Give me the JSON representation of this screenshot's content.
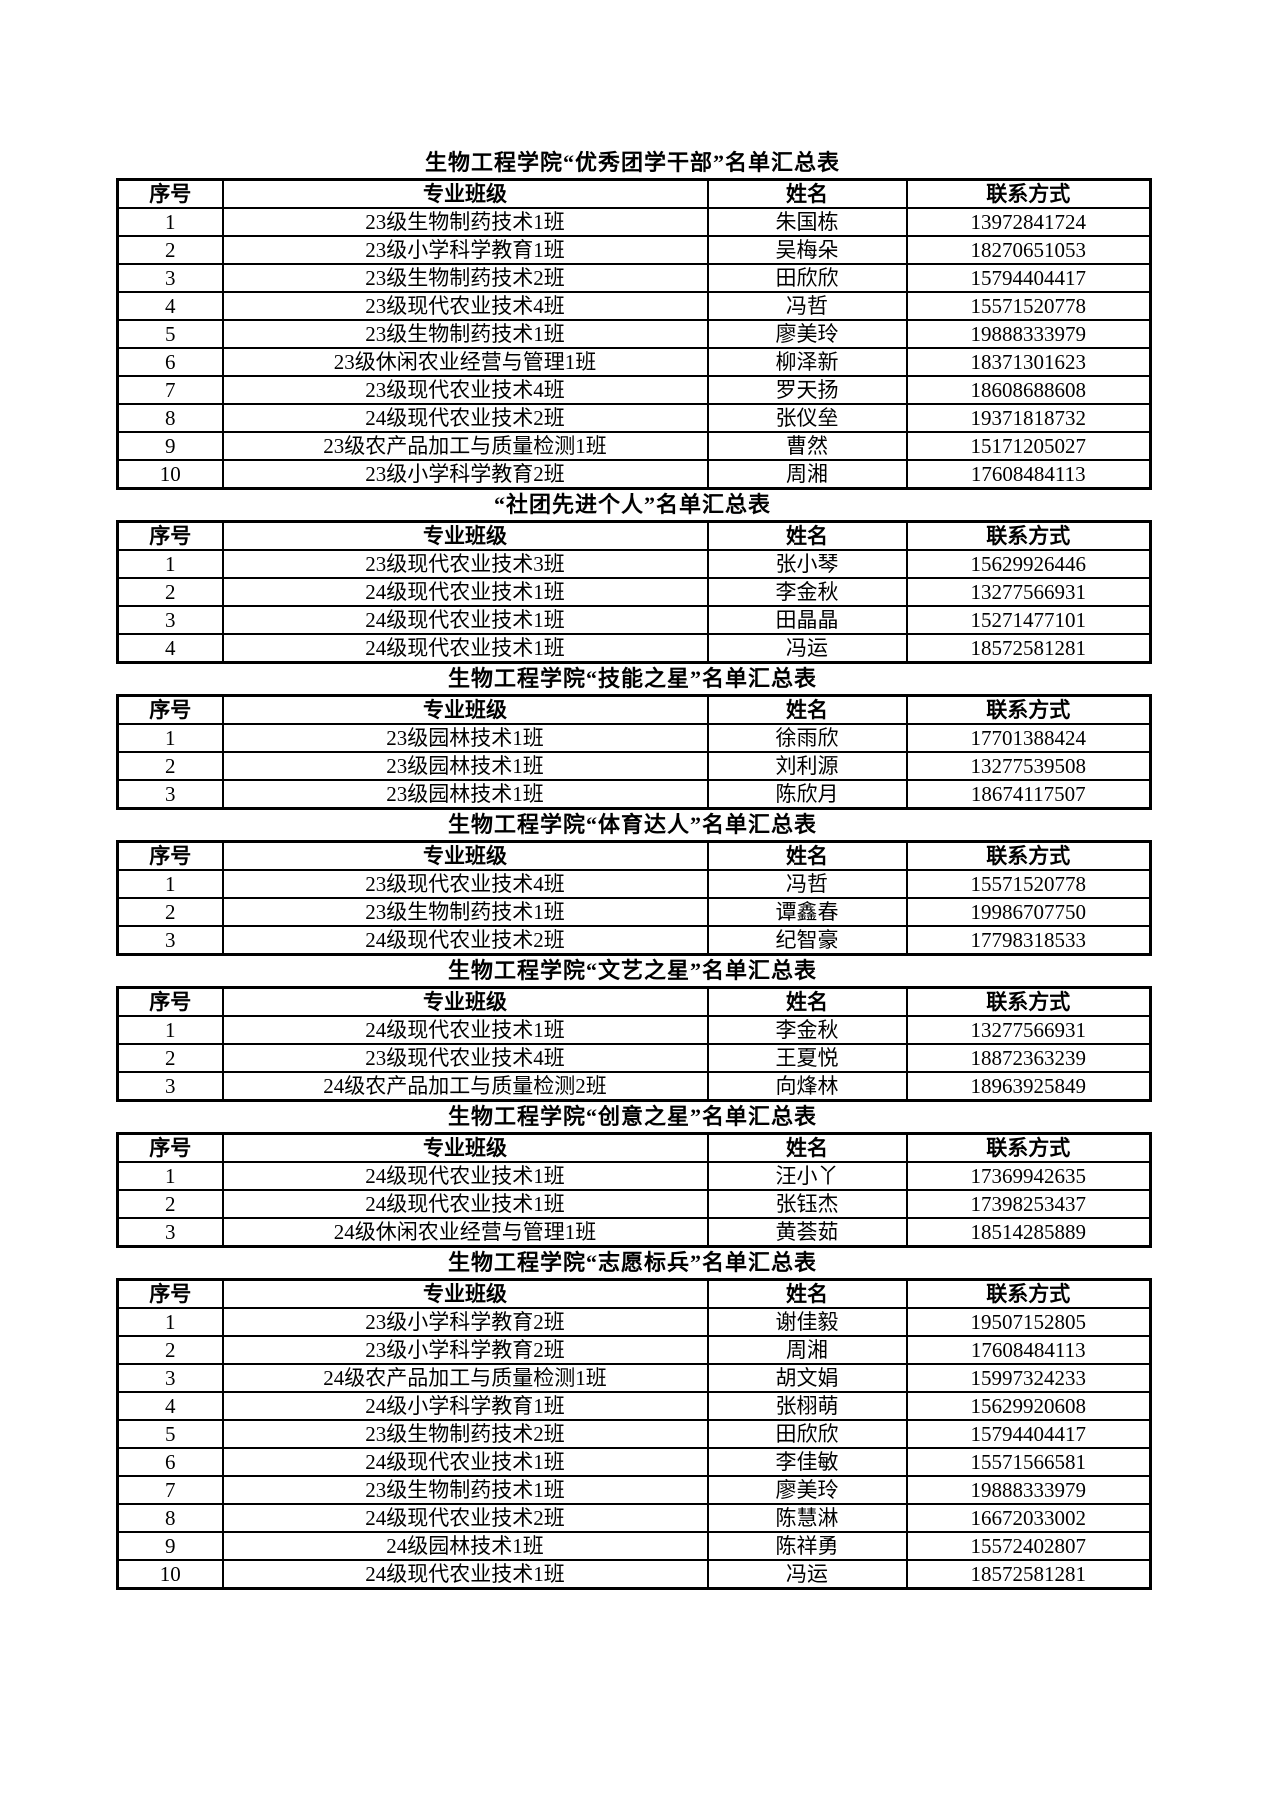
{
  "page": {
    "background": "#ffffff",
    "text_color": "#000000",
    "border_color": "#000000"
  },
  "columns": [
    "序号",
    "专业班级",
    "姓名",
    "联系方式"
  ],
  "tables": [
    {
      "title": "生物工程学院“优秀团学干部”名单汇总表",
      "rows": [
        [
          "1",
          "23级生物制药技术1班",
          "朱国栋",
          "13972841724"
        ],
        [
          "2",
          "23级小学科学教育1班",
          "吴梅朵",
          "18270651053"
        ],
        [
          "3",
          "23级生物制药技术2班",
          "田欣欣",
          "15794404417"
        ],
        [
          "4",
          "23级现代农业技术4班",
          "冯哲",
          "15571520778"
        ],
        [
          "5",
          "23级生物制药技术1班",
          "廖美玲",
          "19888333979"
        ],
        [
          "6",
          "23级休闲农业经营与管理1班",
          "柳泽新",
          "18371301623"
        ],
        [
          "7",
          "23级现代农业技术4班",
          "罗天扬",
          "18608688608"
        ],
        [
          "8",
          "24级现代农业技术2班",
          "张仪垒",
          "19371818732"
        ],
        [
          "9",
          "23级农产品加工与质量检测1班",
          "曹然",
          "15171205027"
        ],
        [
          "10",
          "23级小学科学教育2班",
          "周湘",
          "17608484113"
        ]
      ]
    },
    {
      "title": "“社团先进个人”名单汇总表",
      "rows": [
        [
          "1",
          "23级现代农业技术3班",
          "张小琴",
          "15629926446"
        ],
        [
          "2",
          "24级现代农业技术1班",
          "李金秋",
          "13277566931"
        ],
        [
          "3",
          "24级现代农业技术1班",
          "田晶晶",
          "15271477101"
        ],
        [
          "4",
          "24级现代农业技术1班",
          "冯运",
          "18572581281"
        ]
      ]
    },
    {
      "title": "生物工程学院“技能之星”名单汇总表",
      "rows": [
        [
          "1",
          "23级园林技术1班",
          "徐雨欣",
          "17701388424"
        ],
        [
          "2",
          "23级园林技术1班",
          "刘利源",
          "13277539508"
        ],
        [
          "3",
          "23级园林技术1班",
          "陈欣月",
          "18674117507"
        ]
      ]
    },
    {
      "title": "生物工程学院“体育达人”名单汇总表",
      "rows": [
        [
          "1",
          "23级现代农业技术4班",
          "冯哲",
          "15571520778"
        ],
        [
          "2",
          "23级生物制药技术1班",
          "谭鑫春",
          "19986707750"
        ],
        [
          "3",
          "24级现代农业技术2班",
          "纪智豪",
          "17798318533"
        ]
      ]
    },
    {
      "title": "生物工程学院“文艺之星”名单汇总表",
      "rows": [
        [
          "1",
          "24级现代农业技术1班",
          "李金秋",
          "13277566931"
        ],
        [
          "2",
          "23级现代农业技术4班",
          "王夏悦",
          "18872363239"
        ],
        [
          "3",
          "24级农产品加工与质量检测2班",
          "向烽林",
          "18963925849"
        ]
      ]
    },
    {
      "title": "生物工程学院“创意之星”名单汇总表",
      "rows": [
        [
          "1",
          "24级现代农业技术1班",
          "汪小丫",
          "17369942635"
        ],
        [
          "2",
          "24级现代农业技术1班",
          "张钰杰",
          "17398253437"
        ],
        [
          "3",
          "24级休闲农业经营与管理1班",
          "黄荟茹",
          "18514285889"
        ]
      ]
    },
    {
      "title": "生物工程学院“志愿标兵”名单汇总表",
      "rows": [
        [
          "1",
          "23级小学科学教育2班",
          "谢佳毅",
          "19507152805"
        ],
        [
          "2",
          "23级小学科学教育2班",
          "周湘",
          "17608484113"
        ],
        [
          "3",
          "24级农产品加工与质量检测1班",
          "胡文娟",
          "15997324233"
        ],
        [
          "4",
          "24级小学科学教育1班",
          "张栩萌",
          "15629920608"
        ],
        [
          "5",
          "23级生物制药技术2班",
          "田欣欣",
          "15794404417"
        ],
        [
          "6",
          "24级现代农业技术1班",
          "李佳敏",
          "15571566581"
        ],
        [
          "7",
          "23级生物制药技术1班",
          "廖美玲",
          "19888333979"
        ],
        [
          "8",
          "24级现代农业技术2班",
          "陈慧淋",
          "16672033002"
        ],
        [
          "9",
          "24级园林技术1班",
          "陈祥勇",
          "15572402807"
        ],
        [
          "10",
          "24级现代农业技术1班",
          "冯运",
          "18572581281"
        ]
      ]
    }
  ]
}
